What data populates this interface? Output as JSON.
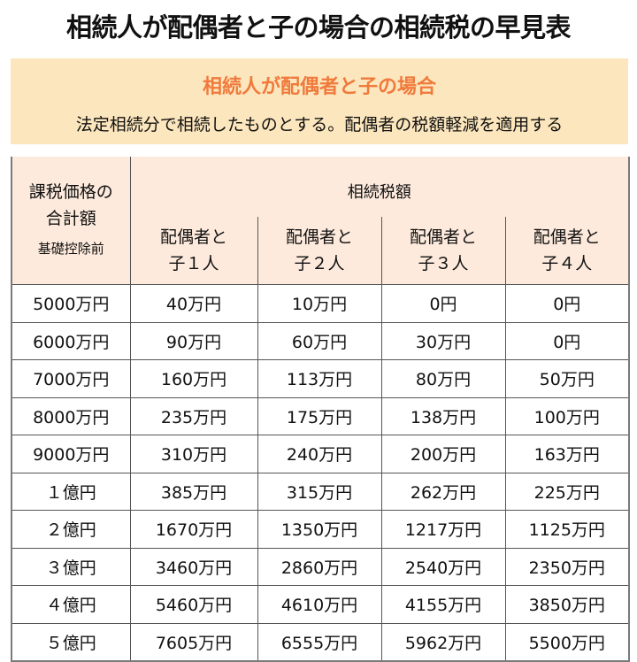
{
  "title": "相続人が配偶者と子の場合の相続税の早見表",
  "banner": {
    "heading": "相続人が配偶者と子の場合",
    "note": "法定相続分で相続したものとする。配偶者の税額軽減を適用する",
    "background_color": "#fce6bd",
    "heading_color": "#f07a3c"
  },
  "table": {
    "row_header": {
      "line1": "課税価格の",
      "line2": "合計額",
      "line3": "基礎控除前"
    },
    "group_header": "相続税額",
    "header_background": "#fdeadc",
    "columns": [
      {
        "line1": "配偶者と",
        "line2": "子１人"
      },
      {
        "line1": "配偶者と",
        "line2": "子２人"
      },
      {
        "line1": "配偶者と",
        "line2": "子３人"
      },
      {
        "line1": "配偶者と",
        "line2": "子４人"
      }
    ],
    "rows": [
      {
        "label": "5000万円",
        "values": [
          "40万円",
          "10万円",
          "0円",
          "0円"
        ]
      },
      {
        "label": "6000万円",
        "values": [
          "90万円",
          "60万円",
          "30万円",
          "0円"
        ]
      },
      {
        "label": "7000万円",
        "values": [
          "160万円",
          "113万円",
          "80万円",
          "50万円"
        ]
      },
      {
        "label": "8000万円",
        "values": [
          "235万円",
          "175万円",
          "138万円",
          "100万円"
        ]
      },
      {
        "label": "9000万円",
        "values": [
          "310万円",
          "240万円",
          "200万円",
          "163万円"
        ]
      },
      {
        "label": "１億円",
        "values": [
          "385万円",
          "315万円",
          "262万円",
          "225万円"
        ]
      },
      {
        "label": "２億円",
        "values": [
          "1670万円",
          "1350万円",
          "1217万円",
          "1125万円"
        ]
      },
      {
        "label": "３億円",
        "values": [
          "3460万円",
          "2860万円",
          "2540万円",
          "2350万円"
        ]
      },
      {
        "label": "４億円",
        "values": [
          "5460万円",
          "4610万円",
          "4155万円",
          "3850万円"
        ]
      },
      {
        "label": "５億円",
        "values": [
          "7605万円",
          "6555万円",
          "5962万円",
          "5500万円"
        ]
      }
    ]
  }
}
